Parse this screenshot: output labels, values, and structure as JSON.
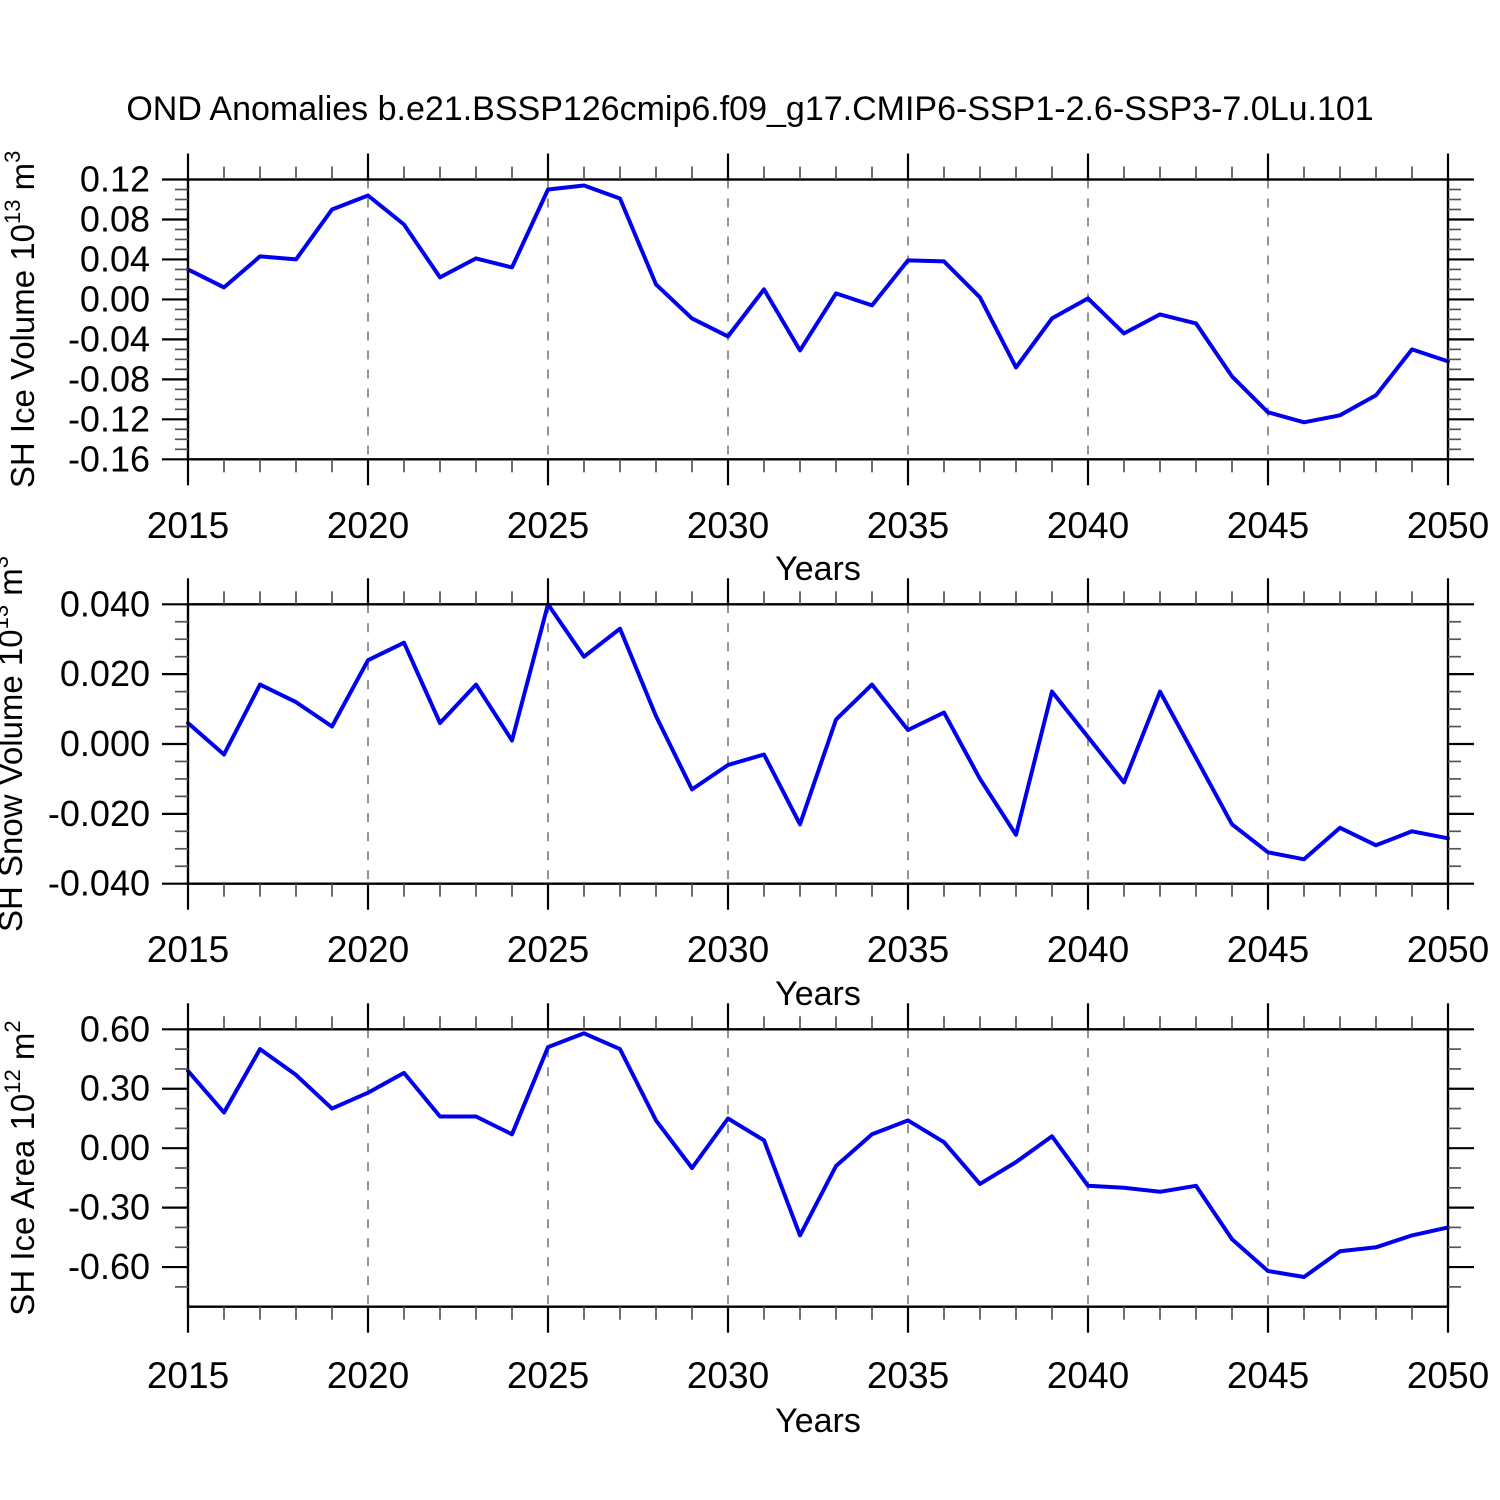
{
  "title": "OND Anomalies b.e21.BSSP126cmip6.f09_g17.CMIP6-SSP1-2.6-SSP3-7.0Lu.101",
  "colors": {
    "line": "#0000EE",
    "grid": "#888888",
    "axis": "#000000"
  },
  "x_ticks": [
    "2015",
    "2020",
    "2025",
    "2030",
    "2035",
    "2040",
    "2045",
    "2050"
  ],
  "grid_years": [
    2020,
    2025,
    2030,
    2035,
    2040,
    2045
  ],
  "chart_data": [
    {
      "type": "line",
      "id": "sh-ice-volume",
      "ylabel": "SH Ice Volume 10^13 m^3",
      "ylabel_parts": [
        [
          "SH Ice Volume 10",
          0
        ],
        [
          "13",
          1
        ],
        [
          " m",
          0
        ],
        [
          "3",
          1
        ]
      ],
      "xlabel": "Years",
      "x": [
        2015,
        2016,
        2017,
        2018,
        2019,
        2020,
        2021,
        2022,
        2023,
        2024,
        2025,
        2026,
        2027,
        2028,
        2029,
        2030,
        2031,
        2032,
        2033,
        2034,
        2035,
        2036,
        2037,
        2038,
        2039,
        2040,
        2041,
        2042,
        2043,
        2044,
        2045,
        2046,
        2047,
        2048,
        2049,
        2050
      ],
      "values": [
        0.03,
        0.012,
        0.043,
        0.04,
        0.09,
        0.104,
        0.075,
        0.022,
        0.041,
        0.032,
        0.11,
        0.114,
        0.101,
        0.015,
        -0.019,
        -0.037,
        0.01,
        -0.051,
        0.006,
        -0.006,
        0.039,
        0.038,
        0.002,
        -0.068,
        -0.019,
        0.001,
        -0.034,
        -0.015,
        -0.024,
        -0.077,
        -0.113,
        -0.123,
        -0.116,
        -0.096,
        -0.05,
        -0.062
      ],
      "ylim": [
        -0.16,
        0.12
      ],
      "frame_ylim": [
        -0.16,
        0.12
      ],
      "yticks": [
        "0.12",
        "0.08",
        "0.04",
        "0.00",
        "-0.04",
        "-0.08",
        "-0.12",
        "-0.16"
      ],
      "ytick_values": [
        0.12,
        0.08,
        0.04,
        0.0,
        -0.04,
        -0.08,
        -0.12,
        -0.16
      ],
      "yminor_step": 0.01,
      "grid": "vertical-dashed"
    },
    {
      "type": "line",
      "id": "sh-snow-volume",
      "ylabel": "SH Snow Volume 10^13 m^3",
      "ylabel_parts": [
        [
          "SH Snow Volume 10",
          0
        ],
        [
          "13",
          1
        ],
        [
          " m",
          0
        ],
        [
          "3",
          1
        ]
      ],
      "xlabel": "Years",
      "x": [
        2015,
        2016,
        2017,
        2018,
        2019,
        2020,
        2021,
        2022,
        2023,
        2024,
        2025,
        2026,
        2027,
        2028,
        2029,
        2030,
        2031,
        2032,
        2033,
        2034,
        2035,
        2036,
        2037,
        2038,
        2039,
        2040,
        2041,
        2042,
        2043,
        2044,
        2045,
        2046,
        2047,
        2048,
        2049,
        2050
      ],
      "values": [
        0.006,
        -0.003,
        0.017,
        0.012,
        0.005,
        0.024,
        0.029,
        0.006,
        0.017,
        0.001,
        0.04,
        0.025,
        0.033,
        0.008,
        -0.013,
        -0.006,
        -0.003,
        -0.023,
        0.007,
        0.017,
        0.004,
        0.009,
        -0.01,
        -0.026,
        0.015,
        0.002,
        -0.011,
        0.015,
        -0.004,
        -0.023,
        -0.031,
        -0.033,
        -0.024,
        -0.029,
        -0.025,
        -0.027
      ],
      "ylim": [
        -0.04,
        0.04
      ],
      "frame_ylim": [
        -0.04,
        0.04
      ],
      "yticks": [
        "0.040",
        "0.020",
        "0.000",
        "-0.020",
        "-0.040"
      ],
      "ytick_values": [
        0.04,
        0.02,
        0.0,
        -0.02,
        -0.04
      ],
      "yminor_step": 0.005,
      "grid": "vertical-dashed"
    },
    {
      "type": "line",
      "id": "sh-ice-area",
      "ylabel": "SH Ice Area 10^12 m^2",
      "ylabel_parts": [
        [
          "SH Ice Area 10",
          0
        ],
        [
          "12",
          1
        ],
        [
          " m",
          0
        ],
        [
          "2",
          1
        ]
      ],
      "xlabel": "Years",
      "x": [
        2015,
        2016,
        2017,
        2018,
        2019,
        2020,
        2021,
        2022,
        2023,
        2024,
        2025,
        2026,
        2027,
        2028,
        2029,
        2030,
        2031,
        2032,
        2033,
        2034,
        2035,
        2036,
        2037,
        2038,
        2039,
        2040,
        2041,
        2042,
        2043,
        2044,
        2045,
        2046,
        2047,
        2048,
        2049,
        2050
      ],
      "values": [
        0.39,
        0.18,
        0.5,
        0.37,
        0.2,
        0.28,
        0.38,
        0.16,
        0.16,
        0.07,
        0.51,
        0.58,
        0.5,
        0.14,
        -0.1,
        0.15,
        0.04,
        -0.44,
        -0.09,
        0.07,
        0.14,
        0.03,
        -0.18,
        -0.07,
        0.06,
        -0.19,
        -0.2,
        -0.22,
        -0.19,
        -0.46,
        -0.62,
        -0.65,
        -0.52,
        -0.5,
        -0.44,
        -0.4
      ],
      "ylim": [
        -0.6,
        0.6
      ],
      "frame_ylim": [
        -0.8,
        0.6
      ],
      "yticks": [
        "0.60",
        "0.30",
        "0.00",
        "-0.30",
        "-0.60"
      ],
      "ytick_values": [
        0.6,
        0.3,
        0.0,
        -0.3,
        -0.6
      ],
      "yminor_step": 0.1,
      "grid": "vertical-dashed"
    }
  ]
}
